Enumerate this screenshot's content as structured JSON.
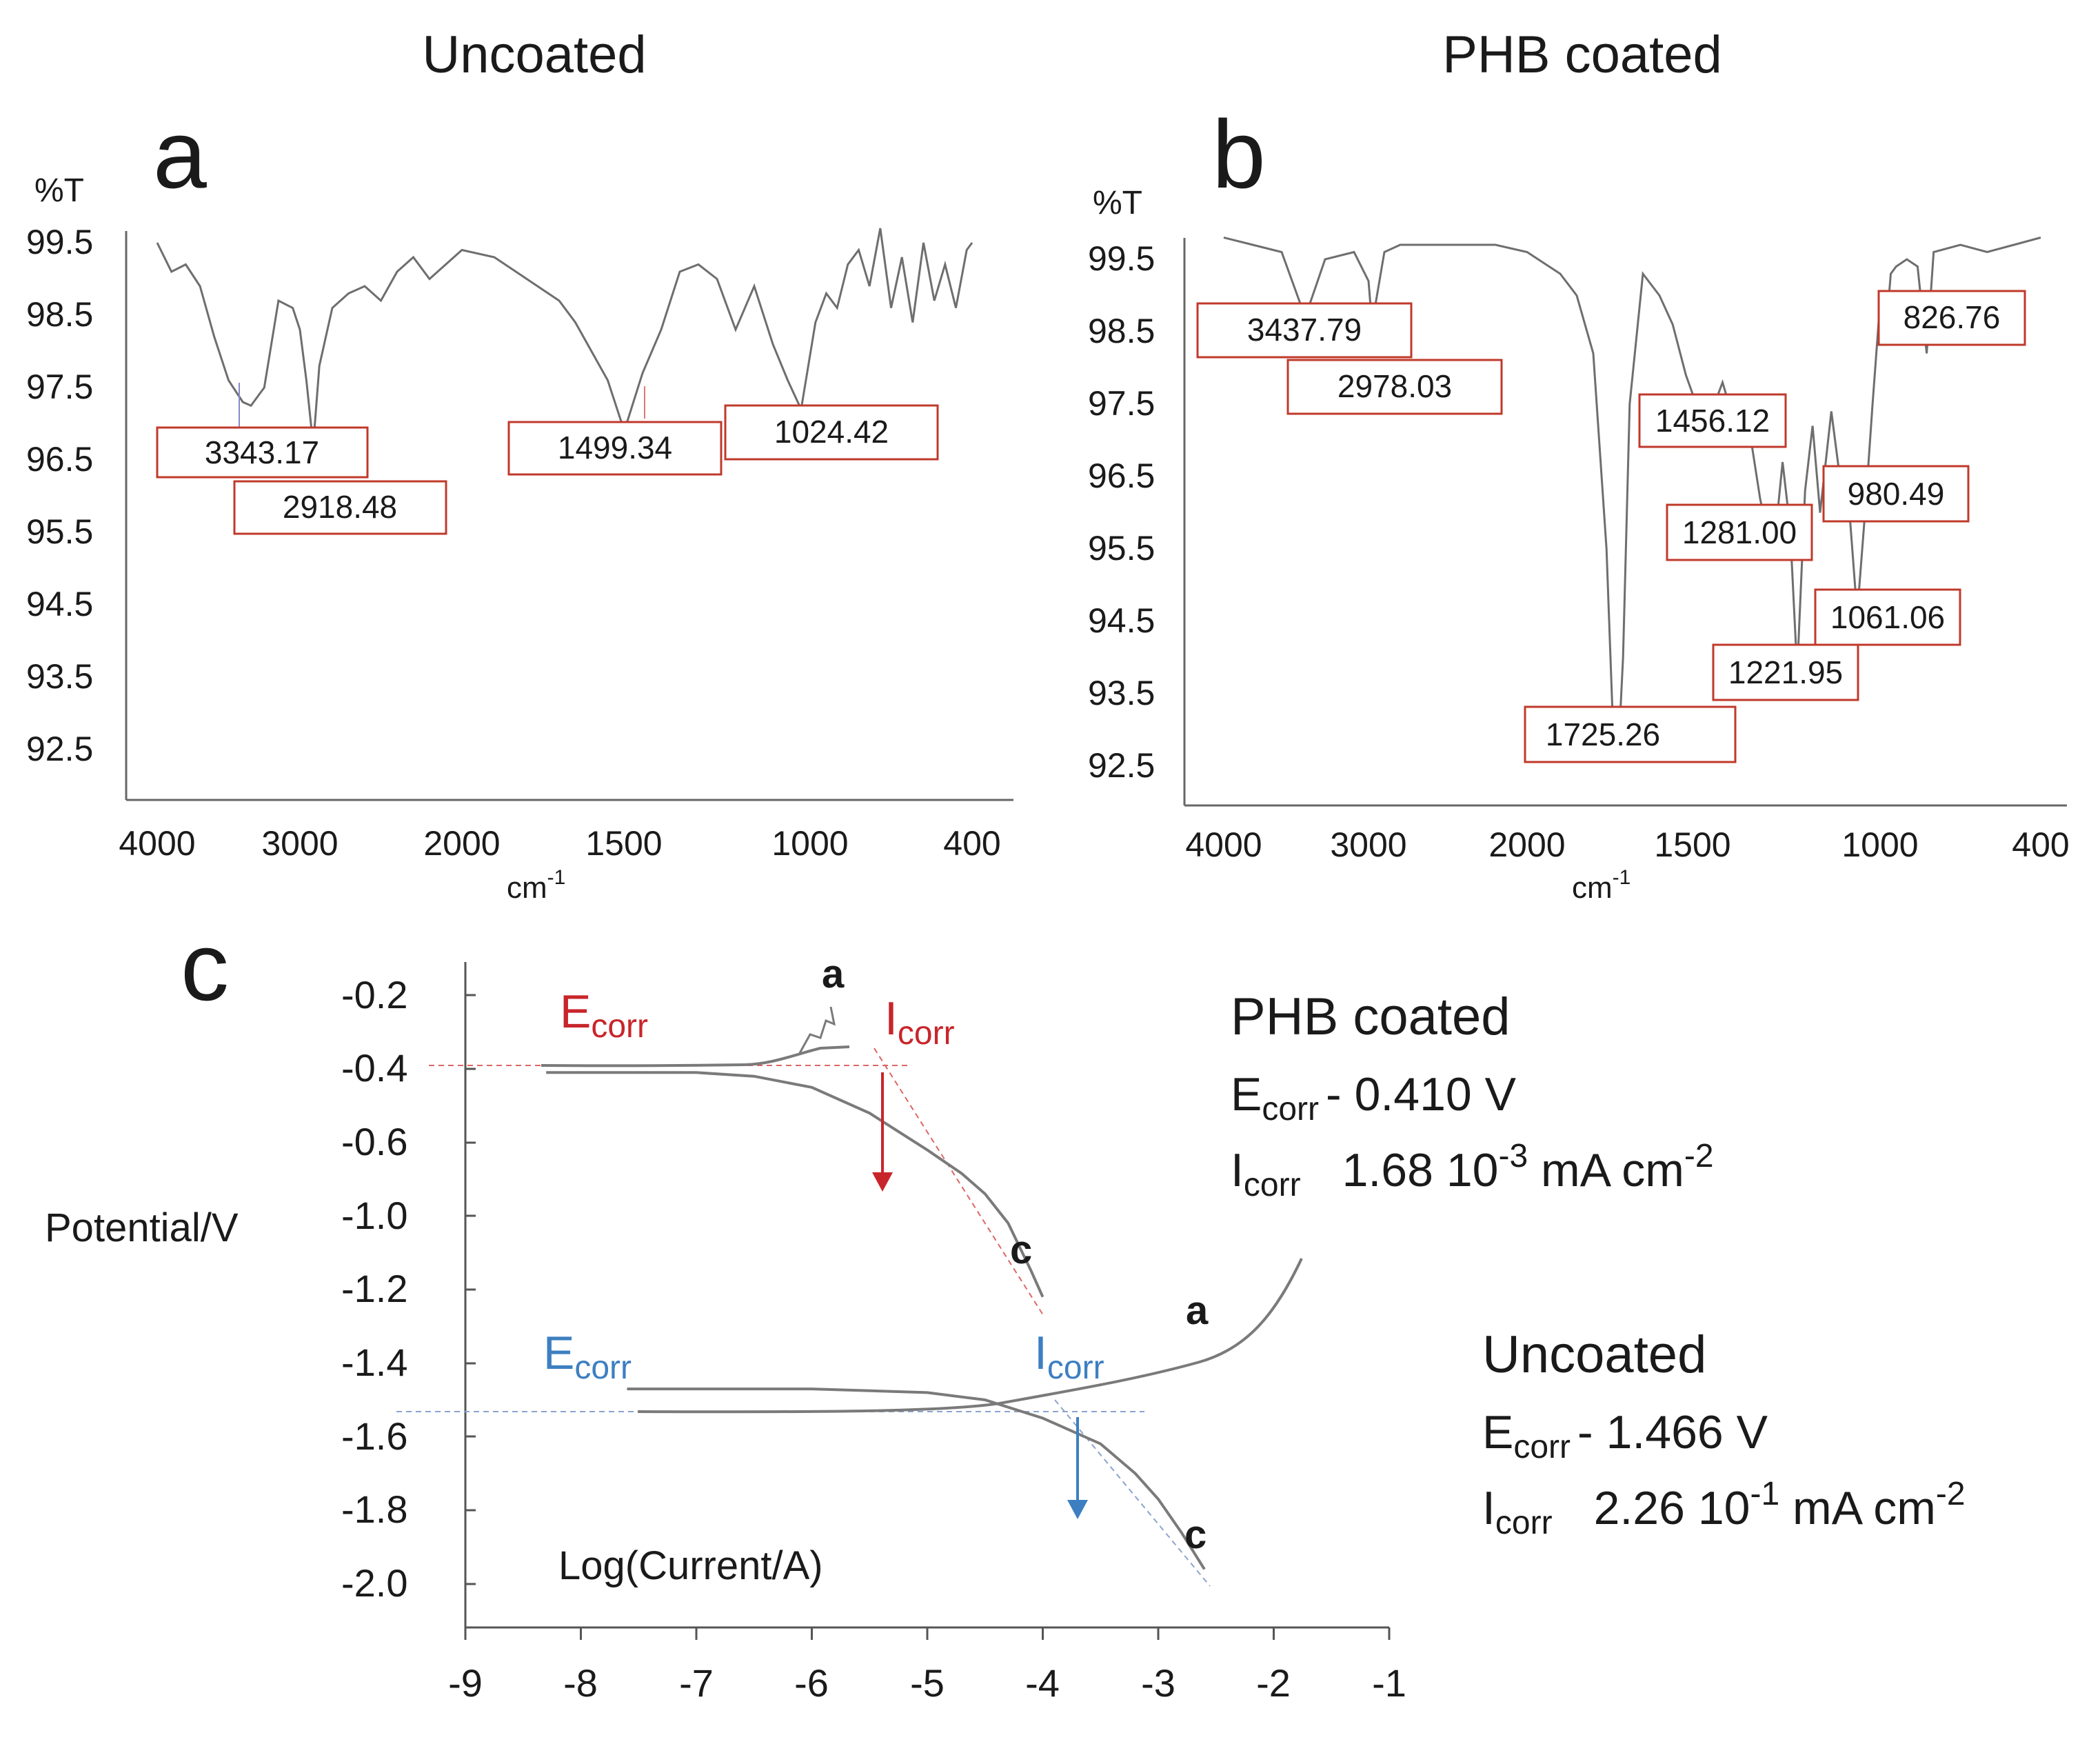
{
  "panels": {
    "a": {
      "letter": "a",
      "title": "Uncoated",
      "ylabel": "%T",
      "xlabel_base": "cm",
      "xlabel_sup": "-1",
      "yticks": [
        "99.5",
        "98.5",
        "97.5",
        "96.5",
        "95.5",
        "94.5",
        "93.5",
        "92.5"
      ],
      "xticks": [
        "4000",
        "3000",
        "2000",
        "1500",
        "1000",
        "400"
      ],
      "peaks": [
        "3343.17",
        "2918.48",
        "1499.34",
        "1024.42"
      ]
    },
    "b": {
      "letter": "b",
      "title": "PHB coated",
      "ylabel": "%T",
      "xlabel_base": "cm",
      "xlabel_sup": "-1",
      "yticks": [
        "99.5",
        "98.5",
        "97.5",
        "96.5",
        "95.5",
        "94.5",
        "93.5",
        "92.5"
      ],
      "xticks": [
        "4000",
        "3000",
        "2000",
        "1500",
        "1000",
        "400"
      ],
      "peaks": [
        "3437.79",
        "2978.03",
        "1456.12",
        "1281.00",
        "980.49",
        "1061.06",
        "1221.95",
        "1725.26",
        "826.76"
      ]
    },
    "c": {
      "letter": "c",
      "ylabel": "Potential/V",
      "xlabel": "Log(Current/A)",
      "yticks": [
        "-0.2",
        "-0.4",
        "-0.6",
        "-1.0",
        "-1.2",
        "-1.4",
        "-1.6",
        "-1.8",
        "-2.0"
      ],
      "xticks": [
        "-9",
        "-8",
        "-7",
        "-6",
        "-5",
        "-4",
        "-3",
        "-2",
        "-1"
      ],
      "ecorr_base": "E",
      "icorr_base": "I",
      "sub_corr": "corr",
      "marker_a": "a",
      "marker_c": "c",
      "coated": {
        "name": "PHB coated",
        "ecorr_value": "- 0.410 V",
        "icorr_pre": "1.68 10",
        "icorr_exp": "-3",
        "icorr_post": " mA cm",
        "icorr_exp2": "-2"
      },
      "uncoated": {
        "name": "Uncoated",
        "ecorr_value": "- 1.466 V",
        "icorr_pre": "2.26 10",
        "icorr_exp": "-1",
        "icorr_post": " mA cm",
        "icorr_exp2": "-2"
      }
    }
  },
  "colors": {
    "curve": "#6e6e6e",
    "label_box": "#c0392b",
    "red_annot": "#c8252b",
    "blue_annot": "#3d7fc1",
    "axis": "#555555"
  },
  "chart_data": [
    {
      "type": "line",
      "title": "Uncoated",
      "xlabel": "cm-1",
      "ylabel": "%T",
      "x_reversed": true,
      "ylim": [
        92.5,
        99.5
      ],
      "xtick_labels": [
        "4000",
        "3000",
        "2000",
        "1500",
        "1000",
        "400"
      ],
      "series": [
        {
          "x": [
            4000,
            3900,
            3800,
            3700,
            3600,
            3500,
            3400,
            3343,
            3250,
            3150,
            3050,
            3000,
            2960,
            2918,
            2880,
            2800,
            2700,
            2600,
            2500,
            2400,
            2300,
            2200,
            2100,
            2000,
            1900,
            1800,
            1700,
            1650,
            1600,
            1550,
            1499,
            1450,
            1400,
            1350,
            1300,
            1250,
            1200,
            1150,
            1100,
            1060,
            1024,
            980,
            940,
            900,
            860,
            820,
            780,
            740,
            700,
            660,
            620,
            580,
            540,
            500,
            460,
            420,
            400
          ],
          "y": [
            99.5,
            99.1,
            99.2,
            98.9,
            98.2,
            97.6,
            97.3,
            97.25,
            97.5,
            98.7,
            98.6,
            98.3,
            97.6,
            96.7,
            97.8,
            98.6,
            98.8,
            98.9,
            98.7,
            99.1,
            99.3,
            99.0,
            99.2,
            99.4,
            99.3,
            99.0,
            98.7,
            98.4,
            98.0,
            97.6,
            96.9,
            97.7,
            98.3,
            99.1,
            99.2,
            99.0,
            98.3,
            98.9,
            98.1,
            97.6,
            97.2,
            98.4,
            98.8,
            98.6,
            99.2,
            99.4,
            98.9,
            99.7,
            98.6,
            99.3,
            98.4,
            99.5,
            98.7,
            99.2,
            98.6,
            99.4,
            99.5
          ]
        }
      ]
    },
    {
      "type": "line",
      "title": "PHB coated",
      "xlabel": "cm-1",
      "ylabel": "%T",
      "x_reversed": true,
      "ylim": [
        92.5,
        99.5
      ],
      "xtick_labels": [
        "4000",
        "3000",
        "2000",
        "1500",
        "1000",
        "400"
      ],
      "series": [
        {
          "x": [
            4000,
            3800,
            3600,
            3437,
            3300,
            3100,
            3000,
            2978,
            2900,
            2800,
            2600,
            2400,
            2200,
            2000,
            1900,
            1850,
            1800,
            1760,
            1740,
            1725,
            1710,
            1690,
            1650,
            1600,
            1560,
            1520,
            1490,
            1456,
            1420,
            1380,
            1350,
            1320,
            1300,
            1281,
            1260,
            1240,
            1221,
            1200,
            1180,
            1160,
            1130,
            1100,
            1080,
            1061,
            1040,
            1020,
            1000,
            980,
            960,
            940,
            900,
            860,
            826,
            800,
            700,
            600,
            500,
            400
          ],
          "y": [
            99.8,
            99.7,
            99.6,
            98.7,
            99.5,
            99.6,
            99.2,
            98.6,
            99.6,
            99.7,
            99.7,
            99.7,
            99.7,
            99.6,
            99.3,
            99.0,
            98.2,
            95.5,
            93.0,
            92.6,
            94.0,
            97.5,
            99.3,
            99.0,
            98.6,
            97.9,
            97.5,
            97.3,
            97.8,
            97.1,
            97.2,
            96.2,
            95.7,
            95.6,
            96.7,
            95.8,
            93.8,
            96.3,
            97.2,
            96.0,
            97.4,
            96.2,
            95.9,
            94.6,
            96.0,
            97.5,
            98.9,
            98.4,
            99.3,
            99.4,
            99.5,
            99.4,
            98.2,
            99.6,
            99.7,
            99.6,
            99.7,
            99.8
          ]
        }
      ]
    },
    {
      "type": "line",
      "title": "",
      "xlabel": "Log(Current/A)",
      "ylabel": "Potential/V",
      "xlim": [
        -9,
        -1
      ],
      "ytick_labels": [
        "-0.2",
        "-0.4",
        "-0.6",
        "-1.0",
        "-1.2",
        "-1.4",
        "-1.6",
        "-1.8",
        "-2.0"
      ],
      "series": [
        {
          "name": "PHB coated",
          "ecorr": -0.41,
          "x": [
            -8.3,
            -7.5,
            -7.0,
            -6.5,
            -6.0,
            -5.5,
            -5.0,
            -4.7,
            -4.5,
            -4.3,
            -4.1,
            -4.0
          ],
          "y": [
            -0.41,
            -0.41,
            -0.41,
            -0.42,
            -0.45,
            -0.52,
            -0.64,
            -0.77,
            -0.88,
            -1.02,
            -1.15,
            -1.22
          ]
        },
        {
          "name": "Uncoated",
          "ecorr": -1.466,
          "x": [
            -7.6,
            -7.0,
            -6.0,
            -5.0,
            -4.5,
            -4.0,
            -3.5,
            -3.2,
            -3.0,
            -2.8,
            -2.6
          ],
          "y": [
            -1.47,
            -1.47,
            -1.47,
            -1.48,
            -1.5,
            -1.55,
            -1.62,
            -1.7,
            -1.77,
            -1.86,
            -1.96
          ]
        }
      ]
    }
  ]
}
